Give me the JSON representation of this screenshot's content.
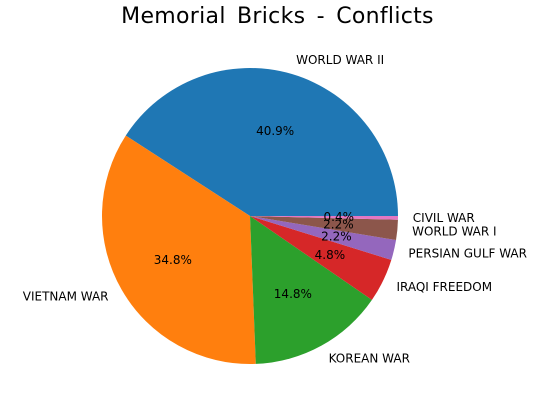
{
  "chart_data": {
    "type": "pie",
    "title": "Memorial Bricks - Conflicts",
    "start_angle_deg": 0,
    "direction": "counterclockwise",
    "slices": [
      {
        "label": "WORLD WAR II",
        "pct_label": "40.9%",
        "value": 40.9,
        "color": "#1f77b4"
      },
      {
        "label": "VIETNAM WAR",
        "pct_label": "34.8%",
        "value": 34.8,
        "color": "#ff7f0e"
      },
      {
        "label": "KOREAN WAR",
        "pct_label": "14.8%",
        "value": 14.8,
        "color": "#2ca02c"
      },
      {
        "label": "IRAQI FREEDOM",
        "pct_label": "4.8%",
        "value": 4.8,
        "color": "#d62728"
      },
      {
        "label": "PERSIAN GULF WAR",
        "pct_label": "2.2%",
        "value": 2.2,
        "color": "#9467bd"
      },
      {
        "label": "WORLD WAR I",
        "pct_label": "2.2%",
        "value": 2.2,
        "color": "#8c564b"
      },
      {
        "label": "CIVIL WAR",
        "pct_label": "0.4%",
        "value": 0.4,
        "color": "#e377c2"
      }
    ]
  }
}
